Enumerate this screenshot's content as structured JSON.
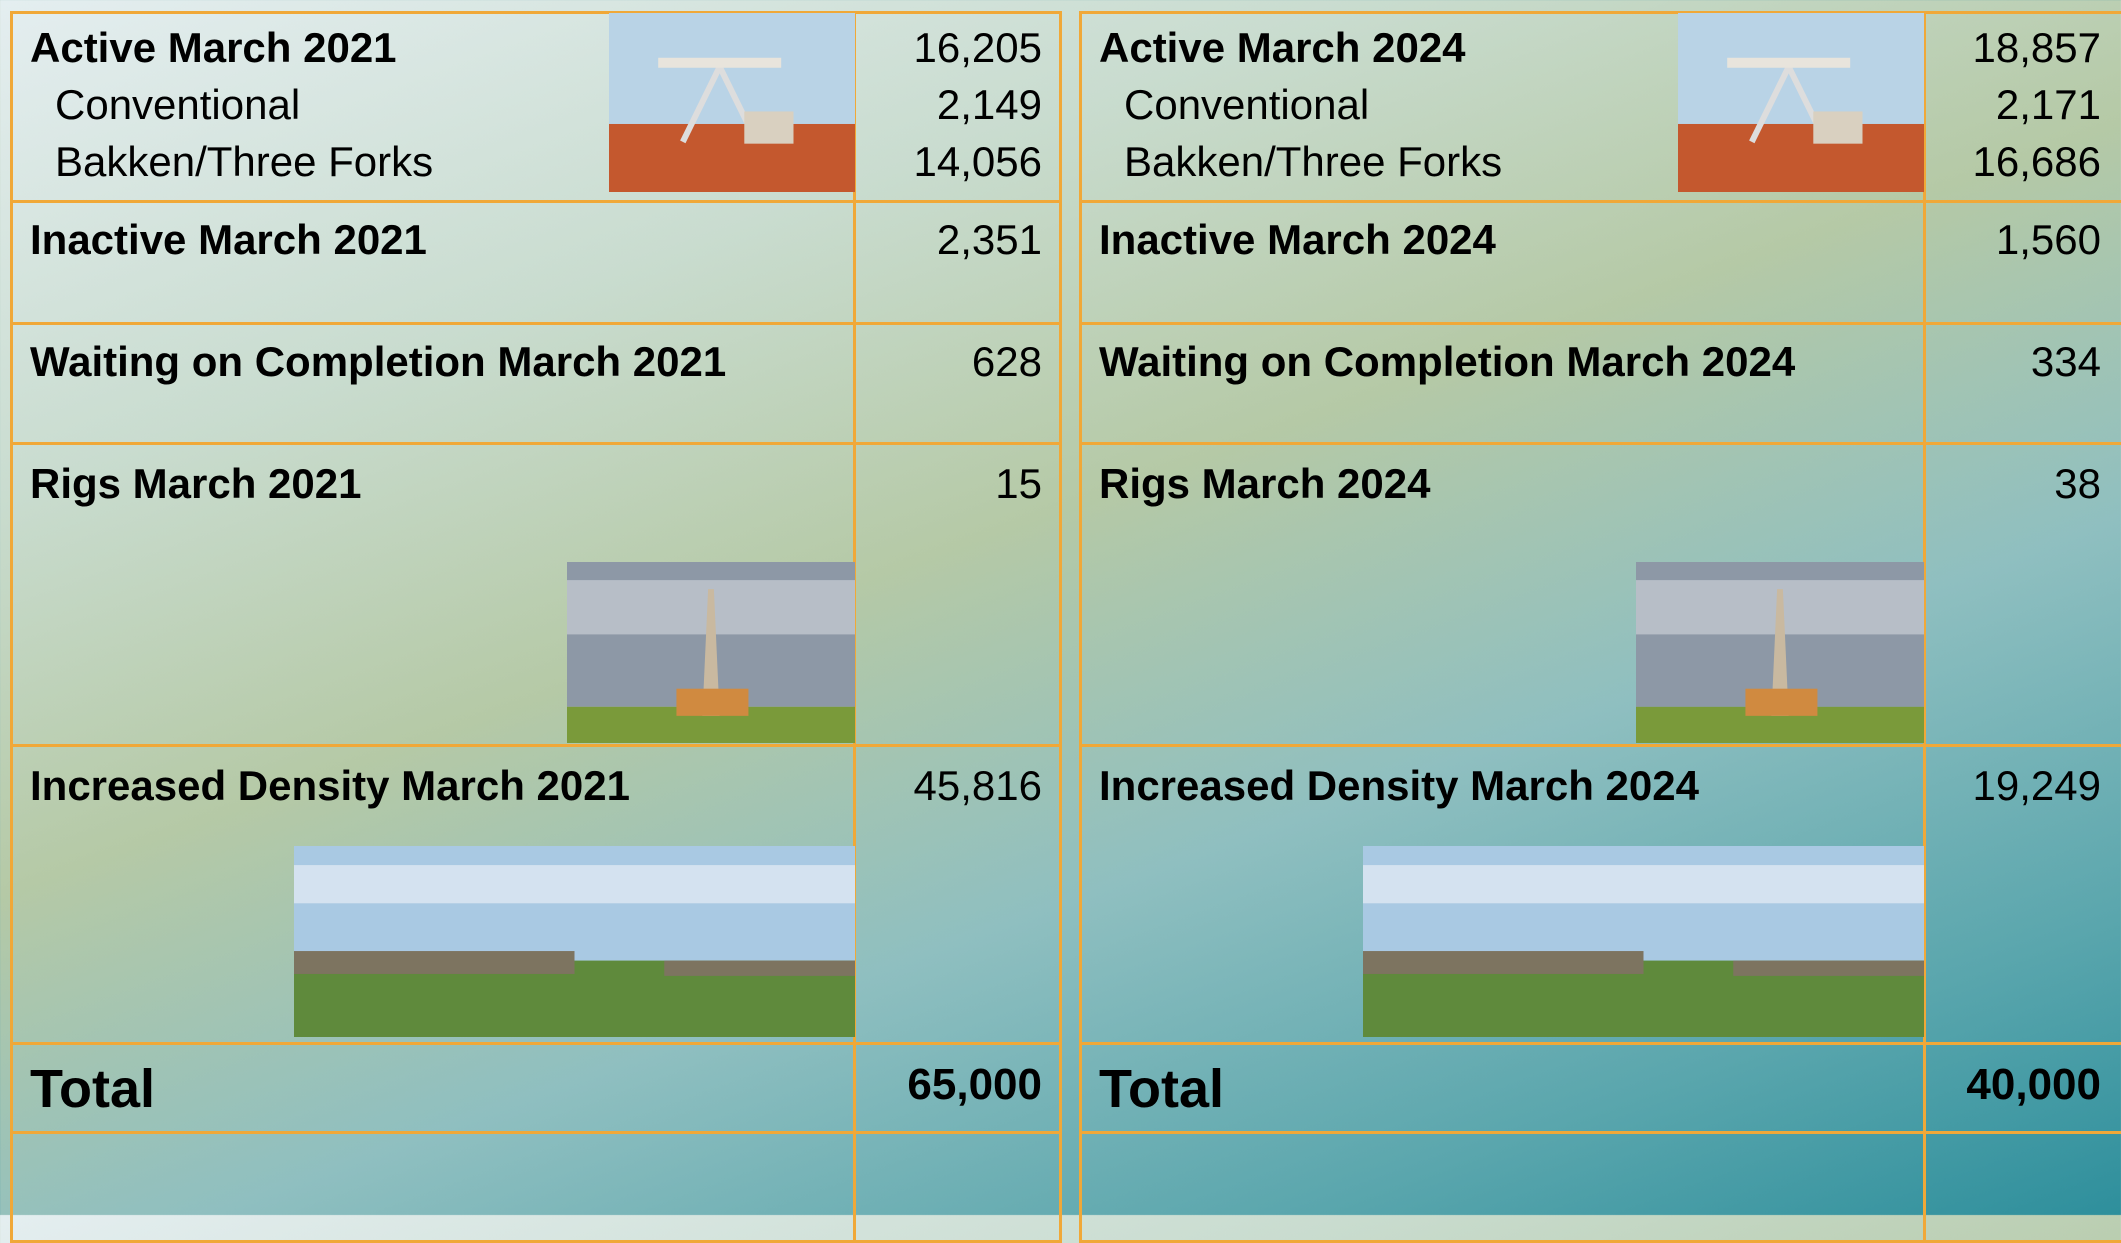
{
  "tables": [
    {
      "active": {
        "label": "Active March 2021",
        "value": "16,205",
        "items": [
          {
            "label": "Conventional",
            "value": "2,149"
          },
          {
            "label": "Bakken/Three Forks",
            "value": "14,056"
          }
        ]
      },
      "rows": [
        {
          "label": "Inactive March 2021",
          "value": "2,351"
        },
        {
          "label": "Waiting on Completion March 2021",
          "value": "628"
        },
        {
          "label": "Rigs March 2021",
          "value": "15"
        },
        {
          "label": "Increased Density March 2021",
          "value": "45,816"
        }
      ],
      "total": {
        "label": "Total",
        "value": "65,000"
      }
    },
    {
      "active": {
        "label": "Active March 2024",
        "value": "18,857",
        "items": [
          {
            "label": "Conventional",
            "value": "2,171"
          },
          {
            "label": "Bakken/Three Forks",
            "value": "16,686"
          }
        ]
      },
      "rows": [
        {
          "label": "Inactive March 2024",
          "value": "1,560"
        },
        {
          "label": "Waiting on Completion March 2024",
          "value": "334"
        },
        {
          "label": "Rigs March 2024",
          "value": "38"
        },
        {
          "label": "Increased Density March 2024",
          "value": "19,249"
        }
      ],
      "total": {
        "label": "Total",
        "value": "40,000"
      }
    }
  ]
}
